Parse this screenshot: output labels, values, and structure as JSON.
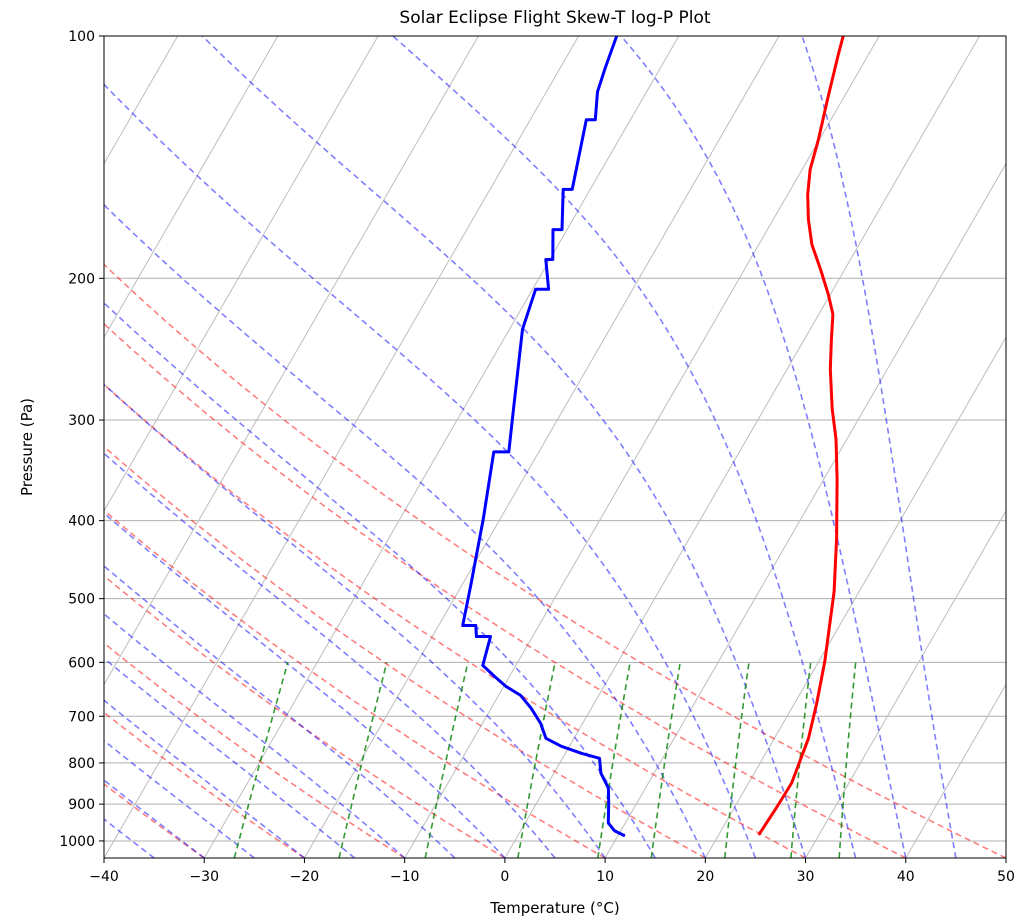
{
  "chart_data": {
    "type": "line",
    "title": "Solar Eclipse Flight Skew-T log-P Plot",
    "xlabel": "Temperature (°C)",
    "ylabel": "Pressure (Pa)",
    "xlim": [
      -40,
      50
    ],
    "ylim": [
      1050,
      100
    ],
    "yscale": "log",
    "skew_deg": 30,
    "grid": true,
    "xticks": [
      "-40",
      "-30",
      "-20",
      "-10",
      "0",
      "10",
      "20",
      "30",
      "40",
      "50"
    ],
    "yticks": [
      "100",
      "200",
      "300",
      "400",
      "500",
      "600",
      "700",
      "800",
      "900",
      "1000"
    ],
    "background_lines": {
      "isotherm_step": 10,
      "isotherm_color": "#bdbdbd",
      "dry_adiabats_degC": [
        -50,
        -40,
        -30,
        -20,
        -10,
        0,
        10,
        20,
        30,
        40,
        50
      ],
      "dry_adiabat_color": "#ff0000",
      "moist_adiabats_degC": [
        -50,
        -45,
        -40,
        -35,
        -30,
        -25,
        -20,
        -15,
        -10,
        -5,
        0,
        5,
        10,
        15,
        20,
        25,
        30,
        35,
        40,
        45
      ],
      "moist_adiabat_color": "#0000ff",
      "mixing_ratios": [
        0.0004,
        0.001,
        0.002,
        0.004,
        0.007,
        0.01,
        0.016,
        0.024,
        0.032
      ],
      "mixing_line_pressure_range": [
        1050,
        600
      ],
      "mixing_line_color": "#008000"
    },
    "series": [
      {
        "color": "#ff0000",
        "points": [
          [
            100,
            -13.6
          ],
          [
            105.6,
            -13.0
          ],
          [
            119.0,
            -11.6
          ],
          [
            134.5,
            -10.1
          ],
          [
            146.6,
            -9.2
          ],
          [
            157.4,
            -8.0
          ],
          [
            169.0,
            -6.5
          ],
          [
            181.6,
            -4.7
          ],
          [
            195.0,
            -2.4
          ],
          [
            209.4,
            -0.2
          ],
          [
            221.6,
            1.4
          ],
          [
            238.1,
            2.7
          ],
          [
            259.3,
            4.3
          ],
          [
            290.7,
            6.8
          ],
          [
            316.7,
            8.9
          ],
          [
            354.9,
            11.3
          ],
          [
            421.1,
            14.7
          ],
          [
            490.0,
            17.5
          ],
          [
            598.4,
            20.6
          ],
          [
            674.5,
            22.2
          ],
          [
            745.6,
            23.4
          ],
          [
            847.6,
            24.3
          ],
          [
            910.3,
            24.2
          ],
          [
            983.0,
            24.0
          ]
        ]
      },
      {
        "color": "#0000ff",
        "points": [
          [
            100,
            -36.2
          ],
          [
            109.6,
            -35.5
          ],
          [
            117.3,
            -34.9
          ],
          [
            127.1,
            -33.5
          ],
          [
            127.1,
            -34.4
          ],
          [
            155.1,
            -31.8
          ],
          [
            155.1,
            -32.7
          ],
          [
            174.0,
            -30.5
          ],
          [
            174.0,
            -31.4
          ],
          [
            189.5,
            -29.7
          ],
          [
            189.5,
            -30.4
          ],
          [
            206.4,
            -28.4
          ],
          [
            206.4,
            -29.7
          ],
          [
            231.4,
            -28.7
          ],
          [
            290.7,
            -25.0
          ],
          [
            328.6,
            -23.0
          ],
          [
            328.6,
            -24.5
          ],
          [
            397.9,
            -21.7
          ],
          [
            481.7,
            -19.1
          ],
          [
            539.9,
            -17.6
          ],
          [
            539.9,
            -16.3
          ],
          [
            557.2,
            -15.6
          ],
          [
            557.2,
            -14.2
          ],
          [
            605.3,
            -13.3
          ],
          [
            624.5,
            -11.5
          ],
          [
            642.6,
            -9.8
          ],
          [
            659.4,
            -7.8
          ],
          [
            684.3,
            -6.0
          ],
          [
            714.2,
            -4.2
          ],
          [
            745.6,
            -2.8
          ],
          [
            762.8,
            -0.8
          ],
          [
            778.3,
            1.6
          ],
          [
            789.5,
            3.7
          ],
          [
            823.9,
            4.7
          ],
          [
            859.8,
            6.3
          ],
          [
            897.4,
            7.2
          ],
          [
            949.9,
            8.3
          ],
          [
            971.8,
            9.4
          ],
          [
            985.8,
            10.7
          ]
        ]
      }
    ]
  }
}
